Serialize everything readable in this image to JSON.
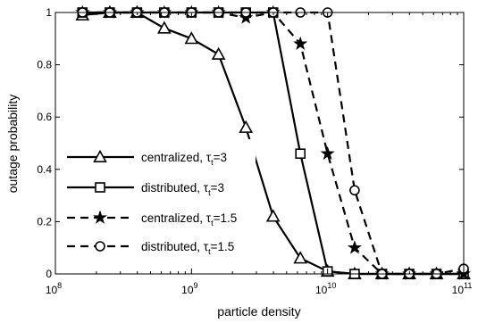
{
  "chart_data": {
    "type": "line",
    "xlabel": "particle density",
    "ylabel": "outage probability",
    "xscale": "log",
    "xlim": [
      100000000.0,
      100000000000.0
    ],
    "ylim": [
      0,
      1
    ],
    "x_ticks": [
      {
        "value": 100000000.0,
        "base": "10",
        "exp": "8"
      },
      {
        "value": 1000000000.0,
        "base": "10",
        "exp": "9"
      },
      {
        "value": 10000000000.0,
        "base": "10",
        "exp": "10"
      },
      {
        "value": 100000000000.0,
        "base": "10",
        "exp": "11"
      }
    ],
    "y_ticks": [
      {
        "value": 0,
        "label": "0"
      },
      {
        "value": 0.2,
        "label": "0.2"
      },
      {
        "value": 0.4,
        "label": "0.4"
      },
      {
        "value": 0.6,
        "label": "0.6"
      },
      {
        "value": 0.8,
        "label": "0.8"
      },
      {
        "value": 1,
        "label": "1"
      }
    ],
    "grid": false,
    "legend_position": "bottom-left",
    "series": [
      {
        "key": "centralized-3",
        "label_main": "centralized, ",
        "label_tau": "τ",
        "label_sub": "t",
        "label_tail": "=3",
        "marker": "triangle",
        "linestyle": "solid",
        "color": "#000000",
        "x": [
          158000000.0,
          251000000.0,
          398000000.0,
          631000000.0,
          1000000000.0,
          1580000000.0,
          2510000000.0,
          3980000000.0,
          6310000000.0,
          10000000000.0,
          15800000000.0,
          25100000000.0,
          39800000000.0,
          63100000000.0,
          100000000000.0
        ],
        "y": [
          0.99,
          1.0,
          1.0,
          0.94,
          0.9,
          0.84,
          0.56,
          0.22,
          0.06,
          0.01,
          0.0,
          0.0,
          0.0,
          0.0,
          0.0
        ]
      },
      {
        "key": "distributed-3",
        "label_main": "distributed, ",
        "label_tau": "τ",
        "label_sub": "t",
        "label_tail": "=3",
        "marker": "square",
        "linestyle": "solid",
        "color": "#000000",
        "x": [
          158000000.0,
          251000000.0,
          398000000.0,
          631000000.0,
          1000000000.0,
          1580000000.0,
          2510000000.0,
          3980000000.0,
          6310000000.0,
          10000000000.0,
          15800000000.0,
          25100000000.0,
          39800000000.0,
          63100000000.0,
          100000000000.0
        ],
        "y": [
          1.0,
          1.0,
          1.0,
          1.0,
          1.0,
          1.0,
          1.0,
          1.0,
          0.46,
          0.01,
          0.0,
          0.0,
          0.0,
          0.0,
          0.0
        ]
      },
      {
        "key": "centralized-1.5",
        "label_main": "centralized, ",
        "label_tau": "τ",
        "label_sub": "t",
        "label_tail": "=1.5",
        "marker": "star",
        "linestyle": "dashed",
        "color": "#000000",
        "x": [
          158000000.0,
          251000000.0,
          398000000.0,
          631000000.0,
          1000000000.0,
          1580000000.0,
          2510000000.0,
          3980000000.0,
          6310000000.0,
          10000000000.0,
          15800000000.0,
          25100000000.0,
          39800000000.0,
          63100000000.0,
          100000000000.0
        ],
        "y": [
          1.0,
          1.0,
          1.0,
          1.0,
          1.0,
          1.0,
          0.98,
          1.0,
          0.88,
          0.46,
          0.1,
          0.0,
          0.0,
          0.0,
          0.0
        ]
      },
      {
        "key": "distributed-1.5",
        "label_main": "distributed, ",
        "label_tau": "τ",
        "label_sub": "t",
        "label_tail": "=1.5",
        "marker": "circle",
        "linestyle": "dashed",
        "color": "#000000",
        "x": [
          158000000.0,
          251000000.0,
          398000000.0,
          631000000.0,
          1000000000.0,
          1580000000.0,
          2510000000.0,
          3980000000.0,
          6310000000.0,
          10000000000.0,
          15800000000.0,
          25100000000.0,
          39800000000.0,
          63100000000.0,
          100000000000.0
        ],
        "y": [
          1.0,
          1.0,
          1.0,
          1.0,
          1.0,
          1.0,
          1.0,
          1.0,
          1.0,
          1.0,
          0.32,
          0.0,
          0.0,
          0.0,
          0.02
        ]
      }
    ]
  }
}
